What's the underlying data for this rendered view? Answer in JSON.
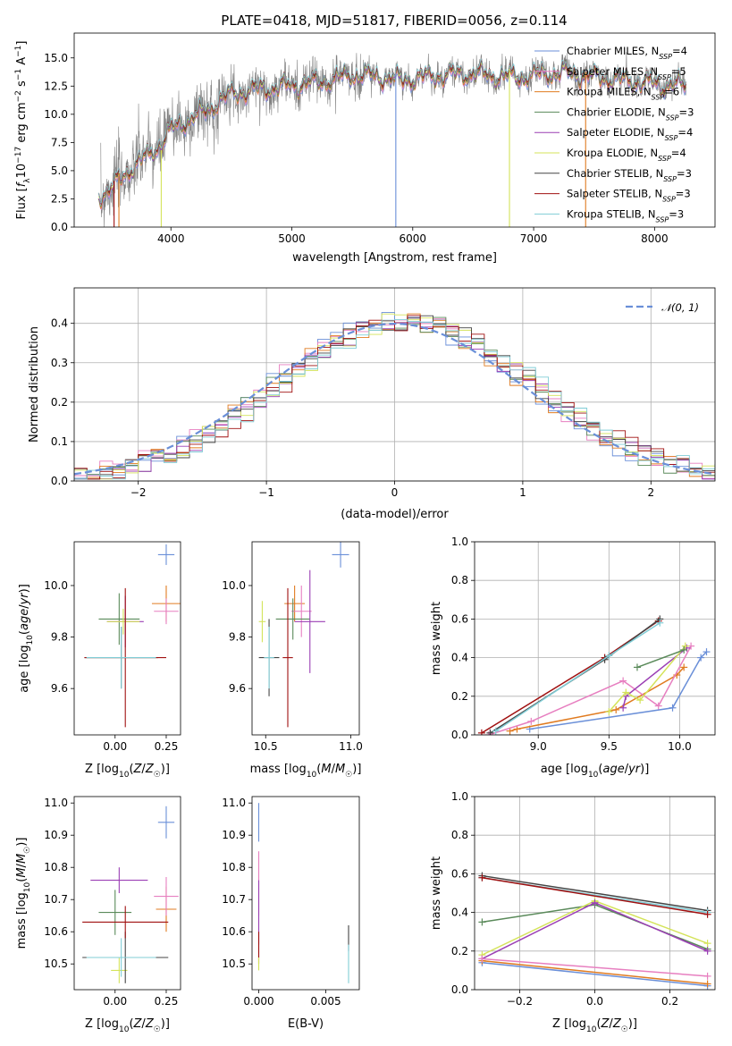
{
  "title": "PLATE=0418, MJD=51817, FIBERID=0056, z=0.114",
  "colors": {
    "c0": "#6a8fd8",
    "c1": "#e07b20",
    "c2": "#5a8a5a",
    "c3": "#9b3fb4",
    "c4": "#d4e35a",
    "c5": "#444444",
    "c6": "#a01010",
    "c7": "#80cdd6",
    "c8": "#e77fc0",
    "data": "#808080"
  },
  "chart_data": [
    {
      "id": "spectrum",
      "type": "line",
      "xlabel": "wavelength [Angstrom, rest frame]",
      "ylabel": "Flux [f_λ 10^-17 erg cm^-2 s^-1 A^-1]",
      "xlim": [
        3200,
        8500
      ],
      "ylim": [
        0,
        17.2
      ],
      "xticks": [
        "4000",
        "5000",
        "6000",
        "7000",
        "8000"
      ],
      "yticks": [
        "0.0",
        "2.5",
        "5.0",
        "7.5",
        "10.0",
        "12.5",
        "15.0"
      ],
      "legend_position": "upper-right",
      "legend": [
        {
          "label": "Chabrier MILES, N",
          "sub": "SSP",
          "suffix": "=4",
          "color": "c0"
        },
        {
          "label": "Salpeter MILES, N",
          "sub": "SSP",
          "suffix": "=5",
          "color": "c8"
        },
        {
          "label": "Kroupa MILES, N",
          "sub": "SSP",
          "suffix": "=6",
          "color": "c1"
        },
        {
          "label": "Chabrier ELODIE, N",
          "sub": "SSP",
          "suffix": "=3",
          "color": "c2"
        },
        {
          "label": "Salpeter ELODIE, N",
          "sub": "SSP",
          "suffix": "=4",
          "color": "c3"
        },
        {
          "label": "Kroupa ELODIE, N",
          "sub": "SSP",
          "suffix": "=4",
          "color": "c4"
        },
        {
          "label": "Chabrier STELIB, N",
          "sub": "SSP",
          "suffix": "=3",
          "color": "c5"
        },
        {
          "label": "Salpeter STELIB, N",
          "sub": "SSP",
          "suffix": "=3",
          "color": "c6"
        },
        {
          "label": "Kroupa STELIB, N",
          "sub": "SSP",
          "suffix": "=3",
          "color": "c7"
        }
      ],
      "model_curve": {
        "x": [
          3400,
          3500,
          3600,
          3700,
          3800,
          3900,
          4000,
          4100,
          4200,
          4300,
          4400,
          4500,
          4700,
          4900,
          5100,
          5300,
          5500,
          5700,
          5900,
          6100,
          6300,
          6500,
          6700,
          6900,
          7100,
          7300,
          7500,
          7700,
          7900,
          8100,
          8250
        ],
        "y": [
          2.8,
          3.3,
          4.5,
          5.5,
          6.2,
          7.2,
          8.6,
          9.3,
          9.8,
          10.3,
          11.2,
          11.8,
          12.2,
          12.4,
          12.7,
          13.0,
          13.5,
          13.4,
          13.0,
          13.3,
          13.5,
          13.6,
          13.4,
          13.3,
          13.6,
          13.7,
          13.3,
          13.1,
          12.8,
          12.6,
          12.6
        ]
      },
      "dropouts": [
        {
          "x": 3530,
          "color": "c6"
        },
        {
          "x": 3570,
          "color": "c1"
        },
        {
          "x": 3920,
          "color": "c4"
        },
        {
          "x": 5860,
          "color": "c0"
        },
        {
          "x": 6800,
          "color": "c4"
        },
        {
          "x": 7430,
          "color": "c1"
        }
      ]
    },
    {
      "id": "residuals",
      "type": "area",
      "xlabel": "(data-model)/error",
      "ylabel": "Normed distribution",
      "xlim": [
        -2.5,
        2.5
      ],
      "ylim": [
        0,
        0.49
      ],
      "xticks": [
        {
          "v": -2,
          "t": "−2"
        },
        {
          "v": -1,
          "t": "−1"
        },
        {
          "v": 0,
          "t": "0"
        },
        {
          "v": 1,
          "t": "1"
        },
        {
          "v": 2,
          "t": "2"
        }
      ],
      "yticks": [
        "0.0",
        "0.1",
        "0.2",
        "0.3",
        "0.4"
      ],
      "grid": true,
      "legend_position": "upper-right",
      "legend": {
        "label": "𝒩(0, 1)",
        "color": "c0"
      },
      "gaussian": {
        "mean": 0,
        "sigma": 1
      }
    },
    {
      "id": "age_vs_z",
      "type": "scatter",
      "xlabel": "Z [log10(Z/Z☉)]",
      "ylabel": "age  [log10(age/yr)]",
      "xlim": [
        -0.2,
        0.32
      ],
      "ylim": [
        9.42,
        10.17
      ],
      "xticks": [
        {
          "v": 0,
          "t": "0.00"
        },
        {
          "v": 0.25,
          "t": "0.25"
        }
      ],
      "yticks": [
        {
          "v": 9.6,
          "t": "9.6"
        },
        {
          "v": 9.8,
          "t": "9.8"
        },
        {
          "v": 10.0,
          "t": "10.0"
        }
      ],
      "points": [
        {
          "x": 0.25,
          "y": 10.12,
          "xerr": 0.04,
          "yerr": 0.04,
          "color": "c0"
        },
        {
          "x": 0.25,
          "y": 9.93,
          "xerr": 0.07,
          "yerr": 0.07,
          "color": "c1"
        },
        {
          "x": 0.25,
          "y": 9.9,
          "xerr": 0.06,
          "yerr": 0.05,
          "color": "c8"
        },
        {
          "x": 0.02,
          "y": 9.87,
          "xerr": 0.1,
          "yerr": 0.1,
          "color": "c2"
        },
        {
          "x": 0.05,
          "y": 9.86,
          "xerr": 0.09,
          "yerr": 0.1,
          "color": "c3"
        },
        {
          "x": 0.04,
          "y": 9.86,
          "xerr": 0.08,
          "yerr": 0.05,
          "color": "c4"
        },
        {
          "x": 0.03,
          "y": 9.72,
          "xerr": 0.18,
          "yerr": 0.12,
          "color": "c5"
        },
        {
          "x": 0.05,
          "y": 9.72,
          "xerr": 0.2,
          "yerr": 0.27,
          "color": "c6"
        },
        {
          "x": 0.03,
          "y": 9.72,
          "xerr": 0.17,
          "yerr": 0.12,
          "color": "c7"
        }
      ]
    },
    {
      "id": "age_vs_mass",
      "type": "scatter",
      "xlabel": "mass [log10(M/M☉)]",
      "ylabel": "",
      "xlim": [
        10.42,
        11.05
      ],
      "ylim": [
        9.42,
        10.17
      ],
      "xticks": [
        {
          "v": 10.5,
          "t": "10.5"
        },
        {
          "v": 11.0,
          "t": "11.0"
        }
      ],
      "yticks": [
        {
          "v": 9.6,
          "t": "9.6"
        },
        {
          "v": 9.8,
          "t": "9.8"
        },
        {
          "v": 10.0,
          "t": "10.0"
        }
      ],
      "points": [
        {
          "x": 10.94,
          "y": 10.12,
          "xerr": 0.05,
          "yerr": 0.05,
          "color": "c0"
        },
        {
          "x": 10.67,
          "y": 9.93,
          "xerr": 0.06,
          "yerr": 0.07,
          "color": "c1"
        },
        {
          "x": 10.71,
          "y": 9.9,
          "xerr": 0.06,
          "yerr": 0.1,
          "color": "c8"
        },
        {
          "x": 10.66,
          "y": 9.87,
          "xerr": 0.1,
          "yerr": 0.08,
          "color": "c2"
        },
        {
          "x": 10.76,
          "y": 9.86,
          "xerr": 0.09,
          "yerr": 0.2,
          "color": "c3"
        },
        {
          "x": 10.48,
          "y": 9.86,
          "xerr": 0.02,
          "yerr": 0.08,
          "color": "c4"
        },
        {
          "x": 10.52,
          "y": 9.72,
          "xerr": 0.06,
          "yerr": 0.15,
          "color": "c5"
        },
        {
          "x": 10.63,
          "y": 9.72,
          "xerr": 0.03,
          "yerr": 0.27,
          "color": "c6"
        },
        {
          "x": 10.52,
          "y": 9.72,
          "xerr": 0.03,
          "yerr": 0.12,
          "color": "c7"
        }
      ]
    },
    {
      "id": "massweight_vs_age",
      "type": "line",
      "xlabel": "age  [log10(age/yr)]",
      "ylabel": "mass weight",
      "xlim": [
        8.55,
        10.25
      ],
      "ylim": [
        0,
        1
      ],
      "xticks": [
        {
          "v": 9.0,
          "t": "9.0"
        },
        {
          "v": 9.5,
          "t": "9.5"
        },
        {
          "v": 10.0,
          "t": "10.0"
        }
      ],
      "yticks": [
        {
          "v": 0,
          "t": "0.0"
        },
        {
          "v": 0.2,
          "t": "0.2"
        },
        {
          "v": 0.4,
          "t": "0.4"
        },
        {
          "v": 0.6,
          "t": "0.6"
        },
        {
          "v": 0.8,
          "t": "0.8"
        },
        {
          "v": 1,
          "t": "1.0"
        }
      ],
      "grid": true,
      "series": [
        {
          "color": "c0",
          "x": [
            8.94,
            9.95,
            10.15,
            10.19
          ],
          "y": [
            0.03,
            0.14,
            0.4,
            0.43
          ]
        },
        {
          "color": "c1",
          "x": [
            8.8,
            8.85,
            9.55,
            9.98,
            10.03
          ],
          "y": [
            0.02,
            0.03,
            0.13,
            0.31,
            0.35
          ]
        },
        {
          "color": "c8",
          "x": [
            8.65,
            8.95,
            9.6,
            9.85,
            10.08
          ],
          "y": [
            0.0,
            0.07,
            0.28,
            0.15,
            0.46
          ]
        },
        {
          "color": "c3",
          "x": [
            9.6,
            9.62,
            10.05
          ],
          "y": [
            0.14,
            0.2,
            0.45
          ]
        },
        {
          "color": "c4",
          "x": [
            9.5,
            9.62,
            9.72,
            10.04
          ],
          "y": [
            0.12,
            0.22,
            0.18,
            0.46
          ]
        },
        {
          "color": "c2",
          "x": [
            9.7,
            10.03
          ],
          "y": [
            0.35,
            0.44
          ]
        },
        {
          "color": "c6",
          "x": [
            8.6,
            9.47,
            9.85
          ],
          "y": [
            0.01,
            0.4,
            0.59
          ]
        },
        {
          "color": "c5",
          "x": [
            8.66,
            9.47,
            9.86
          ],
          "y": [
            0.01,
            0.39,
            0.6
          ]
        },
        {
          "color": "c7",
          "x": [
            8.7,
            9.5,
            9.86
          ],
          "y": [
            0.02,
            0.41,
            0.58
          ]
        }
      ]
    },
    {
      "id": "mass_vs_z",
      "type": "scatter",
      "xlabel": "Z [log10(Z/Z☉)]",
      "ylabel": "mass [log10(M/M☉)]",
      "xlim": [
        -0.2,
        0.32
      ],
      "ylim": [
        10.42,
        11.02
      ],
      "xticks": [
        {
          "v": 0,
          "t": "0.00"
        },
        {
          "v": 0.25,
          "t": "0.25"
        }
      ],
      "yticks": [
        {
          "v": 10.5,
          "t": "10.5"
        },
        {
          "v": 10.6,
          "t": "10.6"
        },
        {
          "v": 10.7,
          "t": "10.7"
        },
        {
          "v": 10.8,
          "t": "10.8"
        },
        {
          "v": 10.9,
          "t": "10.9"
        },
        {
          "v": 11.0,
          "t": "11.0"
        }
      ],
      "points": [
        {
          "x": 0.25,
          "y": 10.94,
          "xerr": 0.04,
          "yerr": 0.05,
          "color": "c0"
        },
        {
          "x": 0.25,
          "y": 10.67,
          "xerr": 0.05,
          "yerr": 0.07,
          "color": "c1"
        },
        {
          "x": 0.25,
          "y": 10.71,
          "xerr": 0.06,
          "yerr": 0.06,
          "color": "c8"
        },
        {
          "x": 0.0,
          "y": 10.66,
          "xerr": 0.08,
          "yerr": 0.07,
          "color": "c2"
        },
        {
          "x": 0.02,
          "y": 10.76,
          "xerr": 0.14,
          "yerr": 0.04,
          "color": "c3"
        },
        {
          "x": 0.02,
          "y": 10.48,
          "xerr": 0.04,
          "yerr": 0.04,
          "color": "c4"
        },
        {
          "x": 0.05,
          "y": 10.52,
          "xerr": 0.21,
          "yerr": 0.08,
          "color": "c5"
        },
        {
          "x": 0.05,
          "y": 10.63,
          "xerr": 0.21,
          "yerr": 0.05,
          "color": "c6"
        },
        {
          "x": 0.03,
          "y": 10.52,
          "xerr": 0.17,
          "yerr": 0.06,
          "color": "c7"
        }
      ]
    },
    {
      "id": "mass_vs_ebv",
      "type": "scatter",
      "xlabel": "E(B-V)",
      "ylabel": "",
      "xlim": [
        -0.0005,
        0.0075
      ],
      "ylim": [
        10.42,
        11.02
      ],
      "xticks": [
        {
          "v": 0,
          "t": "0.000"
        },
        {
          "v": 0.005,
          "t": "0.005"
        }
      ],
      "yticks": [
        {
          "v": 10.5,
          "t": "10.5"
        },
        {
          "v": 10.6,
          "t": "10.6"
        },
        {
          "v": 10.7,
          "t": "10.7"
        },
        {
          "v": 10.8,
          "t": "10.8"
        },
        {
          "v": 10.9,
          "t": "10.9"
        },
        {
          "v": 11.0,
          "t": "11.0"
        }
      ],
      "points": [
        {
          "x": 0.0,
          "y": 10.94,
          "xerr": 0,
          "yerr": 0.06,
          "color": "c0"
        },
        {
          "x": 0.0,
          "y": 10.75,
          "xerr": 0,
          "yerr": 0.1,
          "color": "c8"
        },
        {
          "x": 0.0,
          "y": 10.66,
          "xerr": 0,
          "yerr": 0.1,
          "color": "c3"
        },
        {
          "x": 0.0,
          "y": 10.55,
          "xerr": 0,
          "yerr": 0.05,
          "color": "c6"
        },
        {
          "x": 0.0,
          "y": 10.5,
          "xerr": 0,
          "yerr": 0.02,
          "color": "c4"
        },
        {
          "x": 0.0067,
          "y": 10.58,
          "xerr": 0,
          "yerr": 0.04,
          "color": "c5"
        },
        {
          "x": 0.0067,
          "y": 10.5,
          "xerr": 0,
          "yerr": 0.06,
          "color": "c7"
        }
      ]
    },
    {
      "id": "massweight_vs_z",
      "type": "line",
      "xlabel": "Z [log10(Z/Z☉)]",
      "ylabel": "mass weight",
      "xlim": [
        -0.32,
        0.32
      ],
      "ylim": [
        0,
        1
      ],
      "xticks": [
        {
          "v": -0.2,
          "t": "−0.2"
        },
        {
          "v": 0,
          "t": "0.0"
        },
        {
          "v": 0.2,
          "t": "0.2"
        }
      ],
      "yticks": [
        {
          "v": 0,
          "t": "0.0"
        },
        {
          "v": 0.2,
          "t": "0.2"
        },
        {
          "v": 0.4,
          "t": "0.4"
        },
        {
          "v": 0.6,
          "t": "0.6"
        },
        {
          "v": 0.8,
          "t": "0.8"
        },
        {
          "v": 1,
          "t": "1.0"
        }
      ],
      "grid": true,
      "series": [
        {
          "color": "c5",
          "x": [
            -0.3,
            0.3
          ],
          "y": [
            0.59,
            0.41
          ]
        },
        {
          "color": "c7",
          "x": [
            -0.3,
            0.3
          ],
          "y": [
            0.58,
            0.4
          ]
        },
        {
          "color": "c6",
          "x": [
            -0.3,
            0.3
          ],
          "y": [
            0.58,
            0.39
          ]
        },
        {
          "color": "c2",
          "x": [
            -0.3,
            0.0,
            0.3
          ],
          "y": [
            0.35,
            0.44,
            0.21
          ]
        },
        {
          "color": "c4",
          "x": [
            -0.3,
            0.0,
            0.3
          ],
          "y": [
            0.18,
            0.46,
            0.24
          ]
        },
        {
          "color": "c3",
          "x": [
            -0.3,
            0.0,
            0.3
          ],
          "y": [
            0.16,
            0.45,
            0.2
          ]
        },
        {
          "color": "c0",
          "x": [
            -0.3,
            0.3
          ],
          "y": [
            0.14,
            0.02
          ]
        },
        {
          "color": "c1",
          "x": [
            -0.3,
            0.3
          ],
          "y": [
            0.15,
            0.03
          ]
        },
        {
          "color": "c8",
          "x": [
            -0.3,
            0.3
          ],
          "y": [
            0.16,
            0.07
          ]
        }
      ]
    }
  ]
}
